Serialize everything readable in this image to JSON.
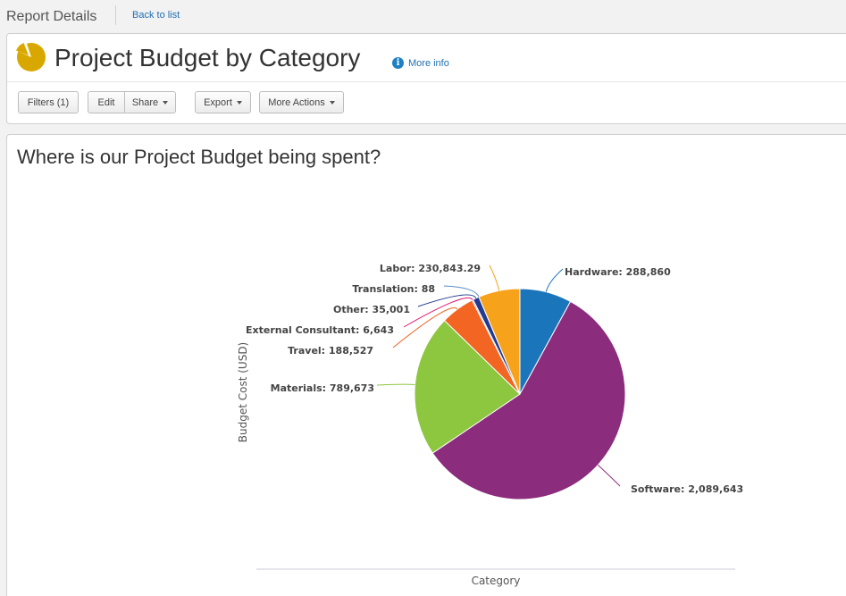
{
  "topbar": {
    "crumb": "Report Details",
    "back": "Back to list"
  },
  "header": {
    "title": "Project Budget by Category",
    "more_info": "More info"
  },
  "toolbar": {
    "filters": "Filters (1)",
    "edit": "Edit",
    "share": "Share",
    "export": "Export",
    "more_actions": "More Actions"
  },
  "colors": {
    "link": "#1f6fb2",
    "logo": "#d9a800"
  },
  "chart_data": {
    "type": "pie",
    "title": "Where is our Project Budget being spent?",
    "xlabel": "Category",
    "ylabel": "Budget Cost (USD)",
    "slices": [
      {
        "label": "Hardware",
        "value": 288860,
        "display": "288,860",
        "color": "#1b75bb"
      },
      {
        "label": "Software",
        "value": 2089643,
        "display": "2,089,643",
        "color": "#8b2c7c"
      },
      {
        "label": "Materials",
        "value": 789673,
        "display": "789,673",
        "color": "#8dc63f"
      },
      {
        "label": "Travel",
        "value": 188527,
        "display": "188,527",
        "color": "#f26522"
      },
      {
        "label": "External Consultant",
        "value": 6643,
        "display": "6,643",
        "color": "#e0166e"
      },
      {
        "label": "Other",
        "value": 35001,
        "display": "35,001",
        "color": "#233b8f"
      },
      {
        "label": "Translation",
        "value": 88,
        "display": "88",
        "color": "#5a8fc8"
      },
      {
        "label": "Labor",
        "value": 230843.29,
        "display": "230,843.29",
        "color": "#f7a21b"
      }
    ]
  }
}
